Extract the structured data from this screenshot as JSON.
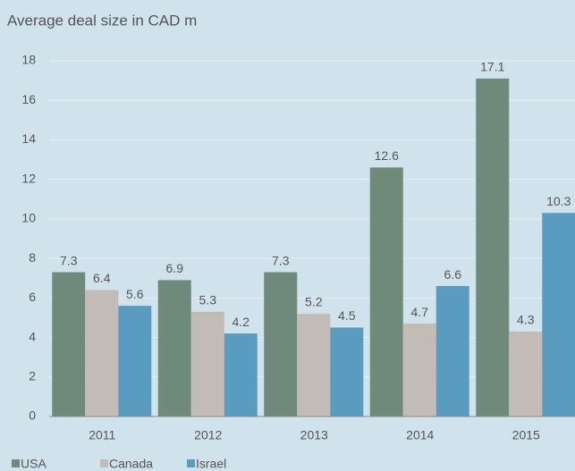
{
  "chart_data": {
    "type": "bar",
    "title": "Average deal size in CAD m",
    "categories": [
      "2011",
      "2012",
      "2013",
      "2014",
      "2015"
    ],
    "series": [
      {
        "name": "USA",
        "color": "#6f8a7b",
        "values": [
          7.3,
          6.9,
          7.3,
          12.6,
          17.1
        ]
      },
      {
        "name": "Canada",
        "color": "#c3bbb5",
        "values": [
          6.4,
          5.3,
          5.2,
          4.7,
          4.3
        ]
      },
      {
        "name": "Israel",
        "color": "#5a9cc0",
        "values": [
          5.6,
          4.2,
          4.5,
          6.6,
          10.3
        ]
      }
    ],
    "ylim": [
      0,
      18
    ],
    "yticks": [
      0,
      2,
      4,
      6,
      8,
      10,
      12,
      14,
      16,
      18
    ],
    "grid": true,
    "legend": "bottom-left"
  }
}
